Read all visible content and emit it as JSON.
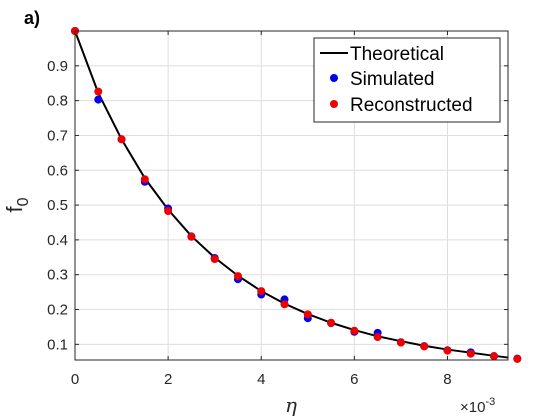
{
  "chart_data": {
    "type": "line",
    "panel_label": "a)",
    "title": "",
    "xlabel": "η",
    "ylabel": "f",
    "ylabel_subscript": "0",
    "x_exponent_base": "×10",
    "x_exponent": "-3",
    "xlim": [
      0,
      0.0093
    ],
    "ylim": [
      0.055,
      1.0
    ],
    "grid": true,
    "legend_position": "top-right",
    "x_ticks": [
      0,
      0.002,
      0.004,
      0.006,
      0.008
    ],
    "x_tick_labels": [
      "0",
      "2",
      "4",
      "6",
      "8"
    ],
    "y_ticks": [
      0.1,
      0.2,
      0.3,
      0.4,
      0.5,
      0.6,
      0.7,
      0.8,
      0.9
    ],
    "y_tick_labels": [
      "0.1",
      "0.2",
      "0.3",
      "0.4",
      "0.5",
      "0.6",
      "0.7",
      "0.8",
      "0.9"
    ],
    "series": [
      {
        "name": "Theoretical",
        "style": "line",
        "color": "#000000",
        "x": [
          0,
          0.0005,
          0.001,
          0.0015,
          0.002,
          0.0025,
          0.003,
          0.0035,
          0.004,
          0.0045,
          0.005,
          0.0055,
          0.006,
          0.0065,
          0.007,
          0.0075,
          0.008,
          0.0085,
          0.009,
          0.0093
        ],
        "y": [
          1.0,
          0.822,
          0.689,
          0.577,
          0.487,
          0.411,
          0.349,
          0.297,
          0.253,
          0.217,
          0.187,
          0.162,
          0.141,
          0.123,
          0.109,
          0.096,
          0.085,
          0.076,
          0.067,
          0.062
        ]
      },
      {
        "name": "Simulated",
        "style": "markers",
        "color": "#0000ee",
        "x": [
          0,
          0.0005,
          0.001,
          0.0015,
          0.002,
          0.0025,
          0.003,
          0.0035,
          0.004,
          0.0045,
          0.005,
          0.0055,
          0.006,
          0.0065,
          0.007,
          0.0075,
          0.008,
          0.0085,
          0.009,
          0.0095
        ],
        "y": [
          1.0,
          0.803,
          0.689,
          0.567,
          0.49,
          0.41,
          0.348,
          0.287,
          0.243,
          0.229,
          0.175,
          0.161,
          0.136,
          0.133,
          0.106,
          0.095,
          0.083,
          0.077,
          0.066,
          0.059
        ]
      },
      {
        "name": "Reconstructed",
        "style": "markers",
        "color": "#ee0000",
        "x": [
          0,
          0.0005,
          0.001,
          0.0015,
          0.002,
          0.0025,
          0.003,
          0.0035,
          0.004,
          0.0045,
          0.005,
          0.0055,
          0.006,
          0.0065,
          0.007,
          0.0075,
          0.008,
          0.0085,
          0.009,
          0.0095
        ],
        "y": [
          1.0,
          0.826,
          0.689,
          0.574,
          0.483,
          0.409,
          0.345,
          0.296,
          0.253,
          0.215,
          0.186,
          0.162,
          0.139,
          0.121,
          0.105,
          0.094,
          0.082,
          0.073,
          0.066,
          0.058
        ]
      }
    ]
  }
}
